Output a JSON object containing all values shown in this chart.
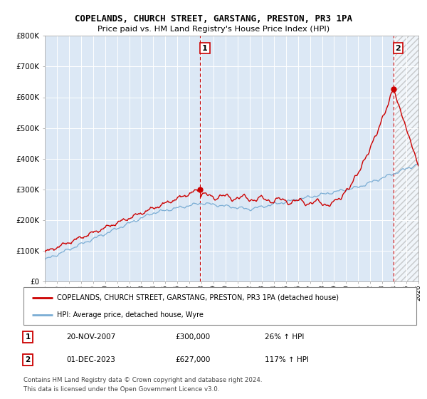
{
  "title": "COPELANDS, CHURCH STREET, GARSTANG, PRESTON, PR3 1PA",
  "subtitle": "Price paid vs. HM Land Registry's House Price Index (HPI)",
  "ytick_labels": [
    "£0",
    "£100K",
    "£200K",
    "£300K",
    "£400K",
    "£500K",
    "£600K",
    "£700K",
    "£800K"
  ],
  "yticks": [
    0,
    100000,
    200000,
    300000,
    400000,
    500000,
    600000,
    700000,
    800000
  ],
  "hpi_color": "#7aadd4",
  "price_color": "#cc0000",
  "sale1_x": 2007.9,
  "sale1_y": 300000,
  "sale2_x": 2023.92,
  "sale2_y": 627000,
  "annotation1": [
    "1",
    "20-NOV-2007",
    "£300,000",
    "26% ↑ HPI"
  ],
  "annotation2": [
    "2",
    "01-DEC-2023",
    "£627,000",
    "117% ↑ HPI"
  ],
  "legend_line1": "COPELANDS, CHURCH STREET, GARSTANG, PRESTON, PR3 1PA (detached house)",
  "legend_line2": "HPI: Average price, detached house, Wyre",
  "footnote": "Contains HM Land Registry data © Crown copyright and database right 2024.\nThis data is licensed under the Open Government Licence v3.0.",
  "plot_bg_color": "#dce8f5",
  "grid_color": "#ffffff",
  "xmin": 1995,
  "xmax": 2026
}
